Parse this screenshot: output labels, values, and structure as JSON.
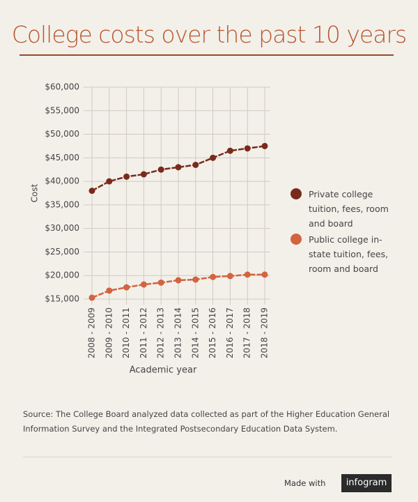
{
  "chart_data": {
    "type": "line",
    "title": "College costs  over the past 10 years",
    "xlabel": "Academic year",
    "ylabel": "Cost",
    "categories": [
      "2008 - 2009",
      "2009 - 2010",
      "2010 - 2011",
      "2011 - 2012",
      "2012 - 2013",
      "2013 - 2014",
      "2014 - 2015",
      "2015 - 2016",
      "2016 - 2017",
      "2017 - 2018",
      "2018 - 2019"
    ],
    "series": [
      {
        "name": "Private college tuition, fees, room and board",
        "color": "#7a2a1c",
        "values": [
          38000,
          40000,
          41000,
          41500,
          42500,
          43000,
          43500,
          45000,
          46500,
          47000,
          47500
        ]
      },
      {
        "name": "Public college in-state tuition, fees, room and board",
        "color": "#d2643f",
        "values": [
          15300,
          16800,
          17500,
          18100,
          18500,
          19000,
          19150,
          19700,
          19900,
          20200,
          20200
        ]
      }
    ],
    "ylim": [
      15000,
      60000
    ],
    "yticks": [
      {
        "value": 15000,
        "label": "$15,000"
      },
      {
        "value": 20000,
        "label": "$20,000"
      },
      {
        "value": 25000,
        "label": "$25,000"
      },
      {
        "value": 30000,
        "label": "$30,000"
      },
      {
        "value": 35000,
        "label": "$35,000"
      },
      {
        "value": 40000,
        "label": "$40,000"
      },
      {
        "value": 45000,
        "label": "$45,000"
      },
      {
        "value": 50000,
        "label": "$50,000"
      },
      {
        "value": 55000,
        "label": "$55,000"
      },
      {
        "value": 60000,
        "label": "$60,000"
      }
    ],
    "grid": true,
    "source": "Source: The College Board analyzed data collected as part of the Higher Education General Information Survey and the Integrated Postsecondary Education Data System.",
    "footer": {
      "made_with": "Made with",
      "brand": "infogram"
    }
  }
}
